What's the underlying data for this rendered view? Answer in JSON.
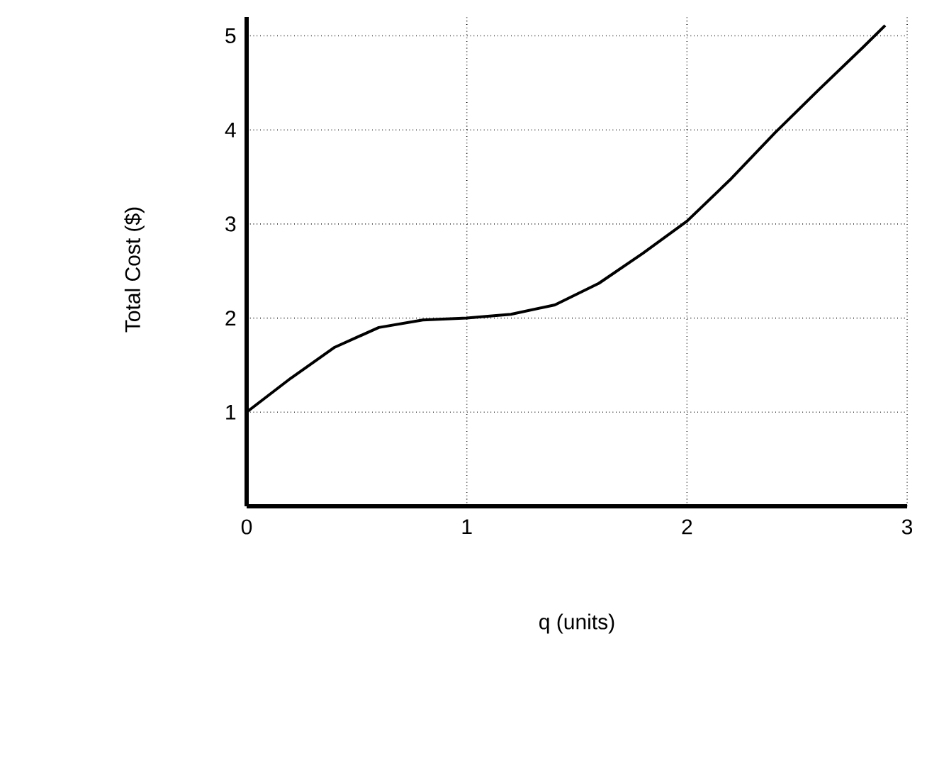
{
  "chart_data": {
    "type": "line",
    "xlabel": "q (units)",
    "ylabel": "Total Cost ($)",
    "x": [
      0,
      0.2,
      0.4,
      0.6,
      0.8,
      1.0,
      1.2,
      1.4,
      1.6,
      1.8,
      2.0,
      2.2,
      2.4,
      2.6,
      2.8,
      2.9
    ],
    "series": [
      {
        "color": "#000000",
        "values": [
          1.0,
          1.36,
          1.69,
          1.9,
          1.98,
          2.0,
          2.04,
          2.14,
          2.37,
          2.69,
          3.03,
          3.48,
          3.97,
          4.43,
          4.88,
          5.11
        ]
      }
    ],
    "xlim": [
      0,
      3
    ],
    "ylim": [
      0,
      5.2
    ],
    "xticks": [
      0,
      1,
      2,
      3
    ],
    "yticks": [
      1,
      2,
      3,
      4,
      5
    ],
    "grid": true,
    "marker": "none",
    "line_style": "solid"
  }
}
